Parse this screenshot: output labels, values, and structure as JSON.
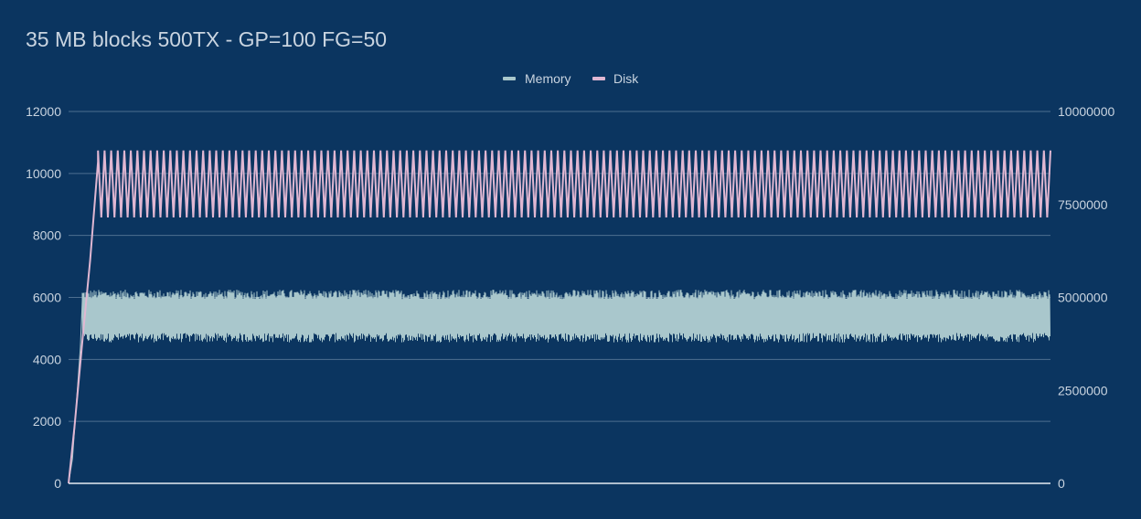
{
  "colors": {
    "background": "#0b3560",
    "gridline": "#4e6f91",
    "axis_line": "#e6ecf2",
    "text": "#c9d4e0",
    "memory": "#a9c7cc",
    "disk": "#e0b7d2"
  },
  "chart_data": {
    "type": "line",
    "title": "35 MB blocks 500TX - GP=100 FG=50",
    "legend": {
      "position": "top-center"
    },
    "grid": true,
    "y_left": {
      "ticks": [
        "0",
        "2000",
        "4000",
        "6000",
        "8000",
        "10000",
        "12000"
      ],
      "range": [
        0,
        12000
      ]
    },
    "y_right": {
      "ticks": [
        "0",
        "2500000",
        "5000000",
        "7500000",
        "10000000"
      ],
      "range": [
        0,
        10000000
      ]
    },
    "x_range": [
      0,
      1000
    ],
    "series": [
      {
        "name": "Memory",
        "axis": "left",
        "description_of_shape": "ramps 0 -> ~4400 at start, then noisy band between ~4600 and ~6200",
        "ramp": [
          [
            0,
            0
          ],
          [
            4,
            800
          ],
          [
            8,
            2600
          ],
          [
            12,
            4400
          ],
          [
            14,
            5900
          ]
        ],
        "band": {
          "x_start": 14,
          "x_end": 1000,
          "low": 4700,
          "high": 6100,
          "noise": 150
        }
      },
      {
        "name": "Disk",
        "axis": "right",
        "ramp": [
          [
            0,
            0
          ],
          [
            6,
            1500000
          ],
          [
            14,
            3800000
          ],
          [
            22,
            6000000
          ],
          [
            30,
            8650000
          ]
        ],
        "oscillation": {
          "x_start": 30,
          "x_end": 1000,
          "low": 7150000,
          "high": 8950000,
          "cycles": 145
        }
      }
    ]
  }
}
